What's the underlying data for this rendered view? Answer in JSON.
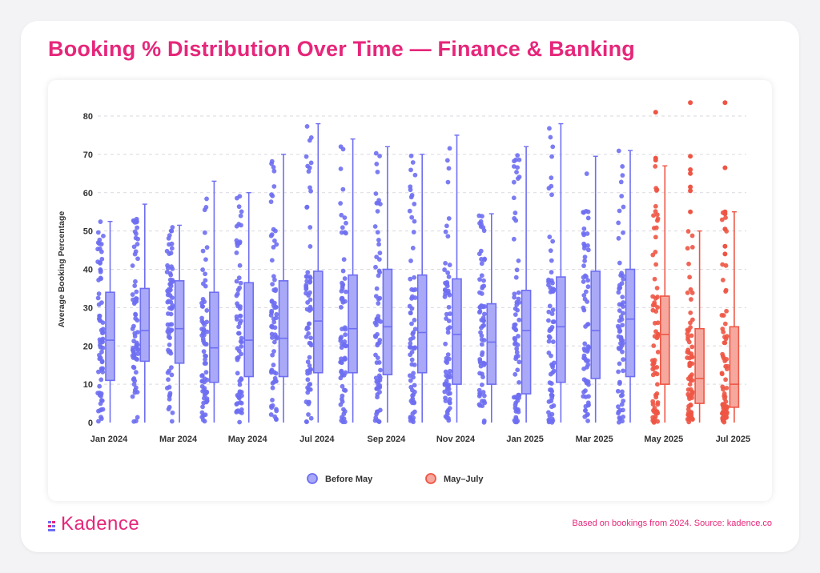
{
  "page": {
    "title": "Booking % Distribution Over Time — Finance & Banking",
    "logo_text": "Kadence",
    "footnote": "Based on bookings from 2024. Source: kadence.co"
  },
  "colors": {
    "accent": "#e6267a",
    "before_may": "#6e6ef2",
    "may_july": "#ee5544"
  },
  "chart_data": {
    "type": "box",
    "ylabel": "Average Booking Percentage",
    "xlabel": "",
    "ylim": [
      0,
      80
    ],
    "yticks": [
      0,
      10,
      20,
      30,
      40,
      50,
      60,
      70,
      80
    ],
    "grid": true,
    "legend": {
      "placement": "bottom",
      "entries": [
        {
          "label": "Before May",
          "color": "#6e6ef2"
        },
        {
          "label": "May–July",
          "color": "#ee5544"
        }
      ]
    },
    "categories": [
      "Jan 2024",
      "Feb 2024",
      "Mar 2024",
      "Apr 2024",
      "May 2024",
      "Jun 2024",
      "Jul 2024",
      "Aug 2024",
      "Sep 2024",
      "Oct 2024",
      "Nov 2024",
      "Dec 2024",
      "Jan 2025",
      "Feb 2025",
      "Mar 2025",
      "Apr 2025",
      "May 2025",
      "Jun 2025",
      "Jul 2025"
    ],
    "tick_labels": [
      "Jan 2024",
      "",
      "Mar 2024",
      "",
      "May 2024",
      "",
      "Jul 2024",
      "",
      "Sep 2024",
      "",
      "Nov 2024",
      "",
      "Jan 2025",
      "",
      "Mar 2025",
      "",
      "May 2025",
      "",
      "Jul 2025"
    ],
    "series": [
      {
        "name": "Before May",
        "boxes": [
          {
            "month": "Jan 2024",
            "min": 0,
            "q1": 11,
            "median": 21.5,
            "q3": 34,
            "max": 52.5
          },
          {
            "month": "Feb 2024",
            "min": 0,
            "q1": 16,
            "median": 24,
            "q3": 35,
            "max": 57
          },
          {
            "month": "Mar 2024",
            "min": 0,
            "q1": 15.5,
            "median": 24.5,
            "q3": 37,
            "max": 51.5
          },
          {
            "month": "Apr 2024",
            "min": 0,
            "q1": 10.5,
            "median": 19.5,
            "q3": 34,
            "max": 63
          },
          {
            "month": "May 2024",
            "min": 0,
            "q1": 12,
            "median": 21.5,
            "q3": 36.5,
            "max": 60
          },
          {
            "month": "Jun 2024",
            "min": 0,
            "q1": 12,
            "median": 22,
            "q3": 37,
            "max": 70
          },
          {
            "month": "Jul 2024",
            "min": 0,
            "q1": 13,
            "median": 26.5,
            "q3": 39.5,
            "max": 78
          },
          {
            "month": "Aug 2024",
            "min": 0,
            "q1": 13,
            "median": 24.5,
            "q3": 38.5,
            "max": 74
          },
          {
            "month": "Sep 2024",
            "min": 0,
            "q1": 12.5,
            "median": 25,
            "q3": 40,
            "max": 72
          },
          {
            "month": "Oct 2024",
            "min": 0,
            "q1": 13,
            "median": 23.5,
            "q3": 38.5,
            "max": 70
          },
          {
            "month": "Nov 2024",
            "min": 0,
            "q1": 10,
            "median": 23,
            "q3": 37.5,
            "max": 75
          },
          {
            "month": "Dec 2024",
            "min": 0,
            "q1": 10,
            "median": 21,
            "q3": 31,
            "max": 54.5
          },
          {
            "month": "Jan 2025",
            "min": 0,
            "q1": 7.5,
            "median": 24,
            "q3": 34.5,
            "max": 72
          },
          {
            "month": "Feb 2025",
            "min": 0,
            "q1": 10.5,
            "median": 25,
            "q3": 38,
            "max": 78
          },
          {
            "month": "Mar 2025",
            "min": 0,
            "q1": 11.5,
            "median": 24,
            "q3": 39.5,
            "max": 69.5
          },
          {
            "month": "Apr 2025",
            "min": 0,
            "q1": 12,
            "median": 27,
            "q3": 40,
            "max": 71
          }
        ]
      },
      {
        "name": "May–July",
        "boxes": [
          {
            "month": "May 2025",
            "min": 0,
            "q1": 10,
            "median": 23,
            "q3": 33,
            "max": 67
          },
          {
            "month": "Jun 2025",
            "min": 0,
            "q1": 5,
            "median": 11.5,
            "q3": 24.5,
            "max": 50
          },
          {
            "month": "Jul 2025",
            "min": 0,
            "q1": 4,
            "median": 10,
            "q3": 25,
            "max": 55
          }
        ]
      }
    ],
    "outliers": [
      {
        "month": "May 2025",
        "values": [
          81,
          69,
          68.5
        ]
      },
      {
        "month": "Jun 2025",
        "values": [
          83.5,
          69.5,
          66,
          65,
          61.5,
          60.5,
          55
        ]
      },
      {
        "month": "Jul 2025",
        "values": [
          83.5,
          66.5,
          55,
          54.5,
          50.5,
          46,
          44
        ]
      }
    ]
  }
}
